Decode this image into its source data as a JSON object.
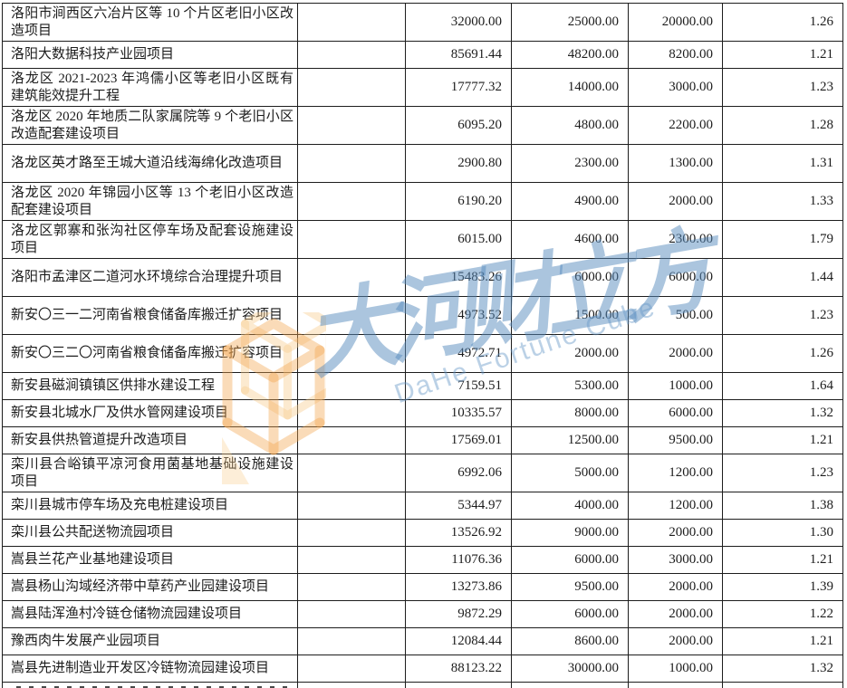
{
  "watermark": {
    "cn_text": "大河财立方",
    "en_text": "DaHe Fortune Cube",
    "blue_color": "#588cbe",
    "orange_color": "#f2a64d"
  },
  "table": {
    "rows": [
      {
        "project": "洛阳市涧西区六冶片区等 10 个片区老旧小区改造项目",
        "values": [
          "32000.00",
          "25000.00",
          "20000.00",
          "1.26"
        ],
        "lines": 2
      },
      {
        "project": "洛阳大数据科技产业园项目",
        "values": [
          "85691.44",
          "48200.00",
          "8200.00",
          "1.21"
        ],
        "lines": 1
      },
      {
        "project": "洛龙区 2021-2023 年鸿儒小区等老旧小区既有建筑能效提升工程",
        "values": [
          "17777.32",
          "14000.00",
          "3000.00",
          "1.23"
        ],
        "lines": 2
      },
      {
        "project": "洛龙区 2020 年地质二队家属院等 9 个老旧小区改造配套建设项目",
        "values": [
          "6095.20",
          "4800.00",
          "2200.00",
          "1.28"
        ],
        "lines": 2
      },
      {
        "project": "洛龙区英才路至王城大道沿线海绵化改造项目",
        "values": [
          "2900.80",
          "2300.00",
          "1300.00",
          "1.31"
        ],
        "lines": 2
      },
      {
        "project": "洛龙区 2020 年锦园小区等 13 个老旧小区改造配套建设项目",
        "values": [
          "6190.20",
          "4900.00",
          "2000.00",
          "1.33"
        ],
        "lines": 2
      },
      {
        "project": "洛龙区郭寨和张沟社区停车场及配套设施建设项目",
        "values": [
          "6015.00",
          "4600.00",
          "2300.00",
          "1.79"
        ],
        "lines": 2
      },
      {
        "project": "洛阳市孟津区二道河水环境综合治理提升项目",
        "values": [
          "15483.26",
          "6000.00",
          "6000.00",
          "1.44"
        ],
        "lines": 2
      },
      {
        "project": "新安〇三一二河南省粮食储备库搬迁扩容项目",
        "values": [
          "4973.52",
          "1500.00",
          "500.00",
          "1.23"
        ],
        "lines": 2
      },
      {
        "project": "新安〇三二〇河南省粮食储备库搬迁扩容项目",
        "values": [
          "4972.71",
          "2000.00",
          "2000.00",
          "1.26"
        ],
        "lines": 2
      },
      {
        "project": "新安县磁涧镇镇区供排水建设工程",
        "values": [
          "7159.51",
          "5300.00",
          "1000.00",
          "1.64"
        ],
        "lines": 1
      },
      {
        "project": "新安县北城水厂及供水管网建设项目",
        "values": [
          "10335.57",
          "8000.00",
          "6000.00",
          "1.32"
        ],
        "lines": 1
      },
      {
        "project": "新安县供热管道提升改造项目",
        "values": [
          "17569.01",
          "12500.00",
          "9500.00",
          "1.21"
        ],
        "lines": 1
      },
      {
        "project": "栾川县合峪镇平凉河食用菌基地基础设施建设项目",
        "values": [
          "6992.06",
          "5000.00",
          "1200.00",
          "1.23"
        ],
        "lines": 2
      },
      {
        "project": "栾川县城市停车场及充电桩建设项目",
        "values": [
          "5344.97",
          "4000.00",
          "1200.00",
          "1.38"
        ],
        "lines": 1
      },
      {
        "project": "栾川县公共配送物流园项目",
        "values": [
          "13526.92",
          "9000.00",
          "2000.00",
          "1.30"
        ],
        "lines": 1
      },
      {
        "project": "嵩县兰花产业基地建设项目",
        "values": [
          "11076.36",
          "6000.00",
          "3000.00",
          "1.21"
        ],
        "lines": 1
      },
      {
        "project": "嵩县杨山沟域经济带中草药产业园建设项目",
        "values": [
          "13273.86",
          "9500.00",
          "2000.00",
          "1.39"
        ],
        "lines": 1
      },
      {
        "project": "嵩县陆浑渔村冷链仓储物流园建设项目",
        "values": [
          "9872.29",
          "6000.00",
          "2000.00",
          "1.22"
        ],
        "lines": 1
      },
      {
        "project": "豫西肉牛发展产业园项目",
        "values": [
          "12084.44",
          "8600.00",
          "2000.00",
          "1.21"
        ],
        "lines": 1
      },
      {
        "project": "嵩县先进制造业开发区冷链物流园建设项目",
        "values": [
          "88123.22",
          "30000.00",
          "1000.00",
          "1.32"
        ],
        "lines": 1
      }
    ],
    "partial_bottom_row_visible": true
  }
}
